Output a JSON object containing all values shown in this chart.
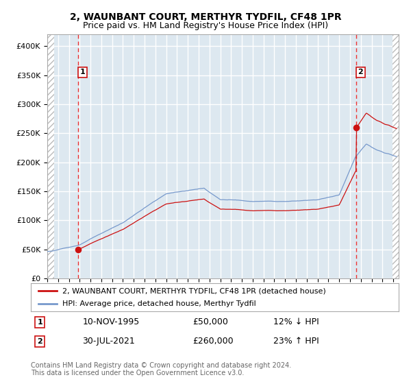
{
  "title": "2, WAUNBANT COURT, MERTHYR TYDFIL, CF48 1PR",
  "subtitle": "Price paid vs. HM Land Registry's House Price Index (HPI)",
  "ylim": [
    0,
    420000
  ],
  "yticks": [
    0,
    50000,
    100000,
    150000,
    200000,
    250000,
    300000,
    350000,
    400000
  ],
  "sale1_date": 1995.86,
  "sale1_price": 50000,
  "sale2_date": 2021.58,
  "sale2_price": 260000,
  "hpi_line_color": "#7799cc",
  "sale_line_color": "#cc1111",
  "sale_marker_color": "#cc1111",
  "background_color": "#dde8f0",
  "grid_color": "#ffffff",
  "vline_color": "#ee3333",
  "legend_label1": "2, WAUNBANT COURT, MERTHYR TYDFIL, CF48 1PR (detached house)",
  "legend_label2": "HPI: Average price, detached house, Merthyr Tydfil",
  "note1_date": "10-NOV-1995",
  "note1_price": "£50,000",
  "note1_hpi": "12% ↓ HPI",
  "note2_date": "30-JUL-2021",
  "note2_price": "£260,000",
  "note2_hpi": "23% ↑ HPI",
  "copyright": "Contains HM Land Registry data © Crown copyright and database right 2024.\nThis data is licensed under the Open Government Licence v3.0.",
  "title_fontsize": 10,
  "subtitle_fontsize": 9
}
